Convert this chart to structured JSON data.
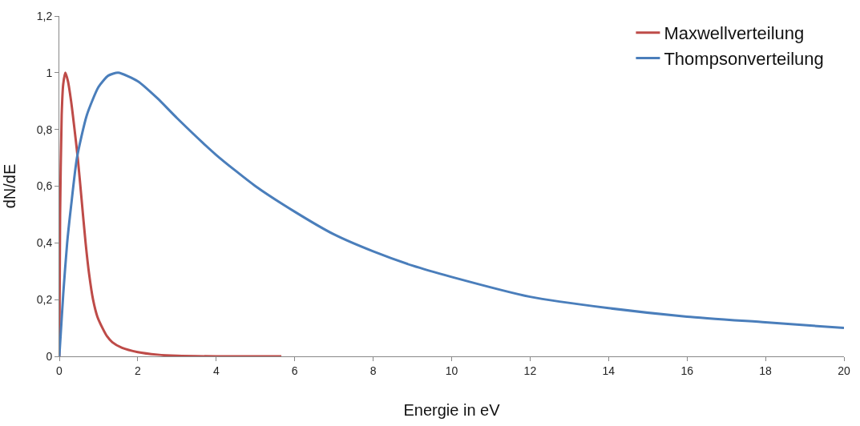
{
  "chart_data": {
    "type": "line",
    "xlabel": "Energie in eV",
    "ylabel": "dN/dE",
    "xlim": [
      0,
      20
    ],
    "xticks": [
      0,
      2,
      4,
      6,
      8,
      10,
      12,
      14,
      16,
      18,
      20
    ],
    "ylim": [
      0,
      1.2
    ],
    "yticks": [
      0,
      {
        "value": 0.2,
        "label": "0,2"
      },
      {
        "value": 0.4,
        "label": "0,4"
      },
      {
        "value": 0.6,
        "label": "0,6"
      },
      {
        "value": 0.8,
        "label": "0,8"
      },
      1,
      {
        "value": 1.2,
        "label": "1,2"
      }
    ],
    "legend": "top right",
    "marker": "none",
    "line_style": "solid",
    "series": [
      {
        "name": "Maxwellverteilung",
        "color": "#be4b48",
        "x": [
          0,
          0.02,
          0.06,
          0.1,
          0.154,
          0.22,
          0.3,
          0.38,
          0.47,
          0.57,
          0.67,
          0.76,
          0.86,
          0.97,
          1.1,
          1.22,
          1.35,
          1.6,
          2,
          2.5,
          3,
          4,
          5,
          5.66
        ],
        "values": [
          0,
          0.5,
          0.85,
          0.96,
          1.0,
          0.97,
          0.9,
          0.81,
          0.7,
          0.55,
          0.4,
          0.29,
          0.2,
          0.14,
          0.1,
          0.07,
          0.05,
          0.03,
          0.015,
          0.006,
          0.002,
          0,
          0,
          0
        ]
      },
      {
        "name": "Thompsonverteilung",
        "color": "#4a7ebb",
        "x": [
          0,
          0.1,
          0.2,
          0.3,
          0.45,
          0.7,
          1,
          1.25,
          1.5,
          2,
          2.5,
          3,
          4,
          5,
          6,
          7,
          8,
          9,
          10,
          12,
          14,
          16,
          18,
          20
        ],
        "values": [
          0,
          0.22,
          0.4,
          0.53,
          0.7,
          0.85,
          0.95,
          0.99,
          1.0,
          0.97,
          0.91,
          0.84,
          0.71,
          0.6,
          0.51,
          0.43,
          0.37,
          0.32,
          0.28,
          0.21,
          0.17,
          0.14,
          0.12,
          0.1
        ]
      }
    ]
  }
}
